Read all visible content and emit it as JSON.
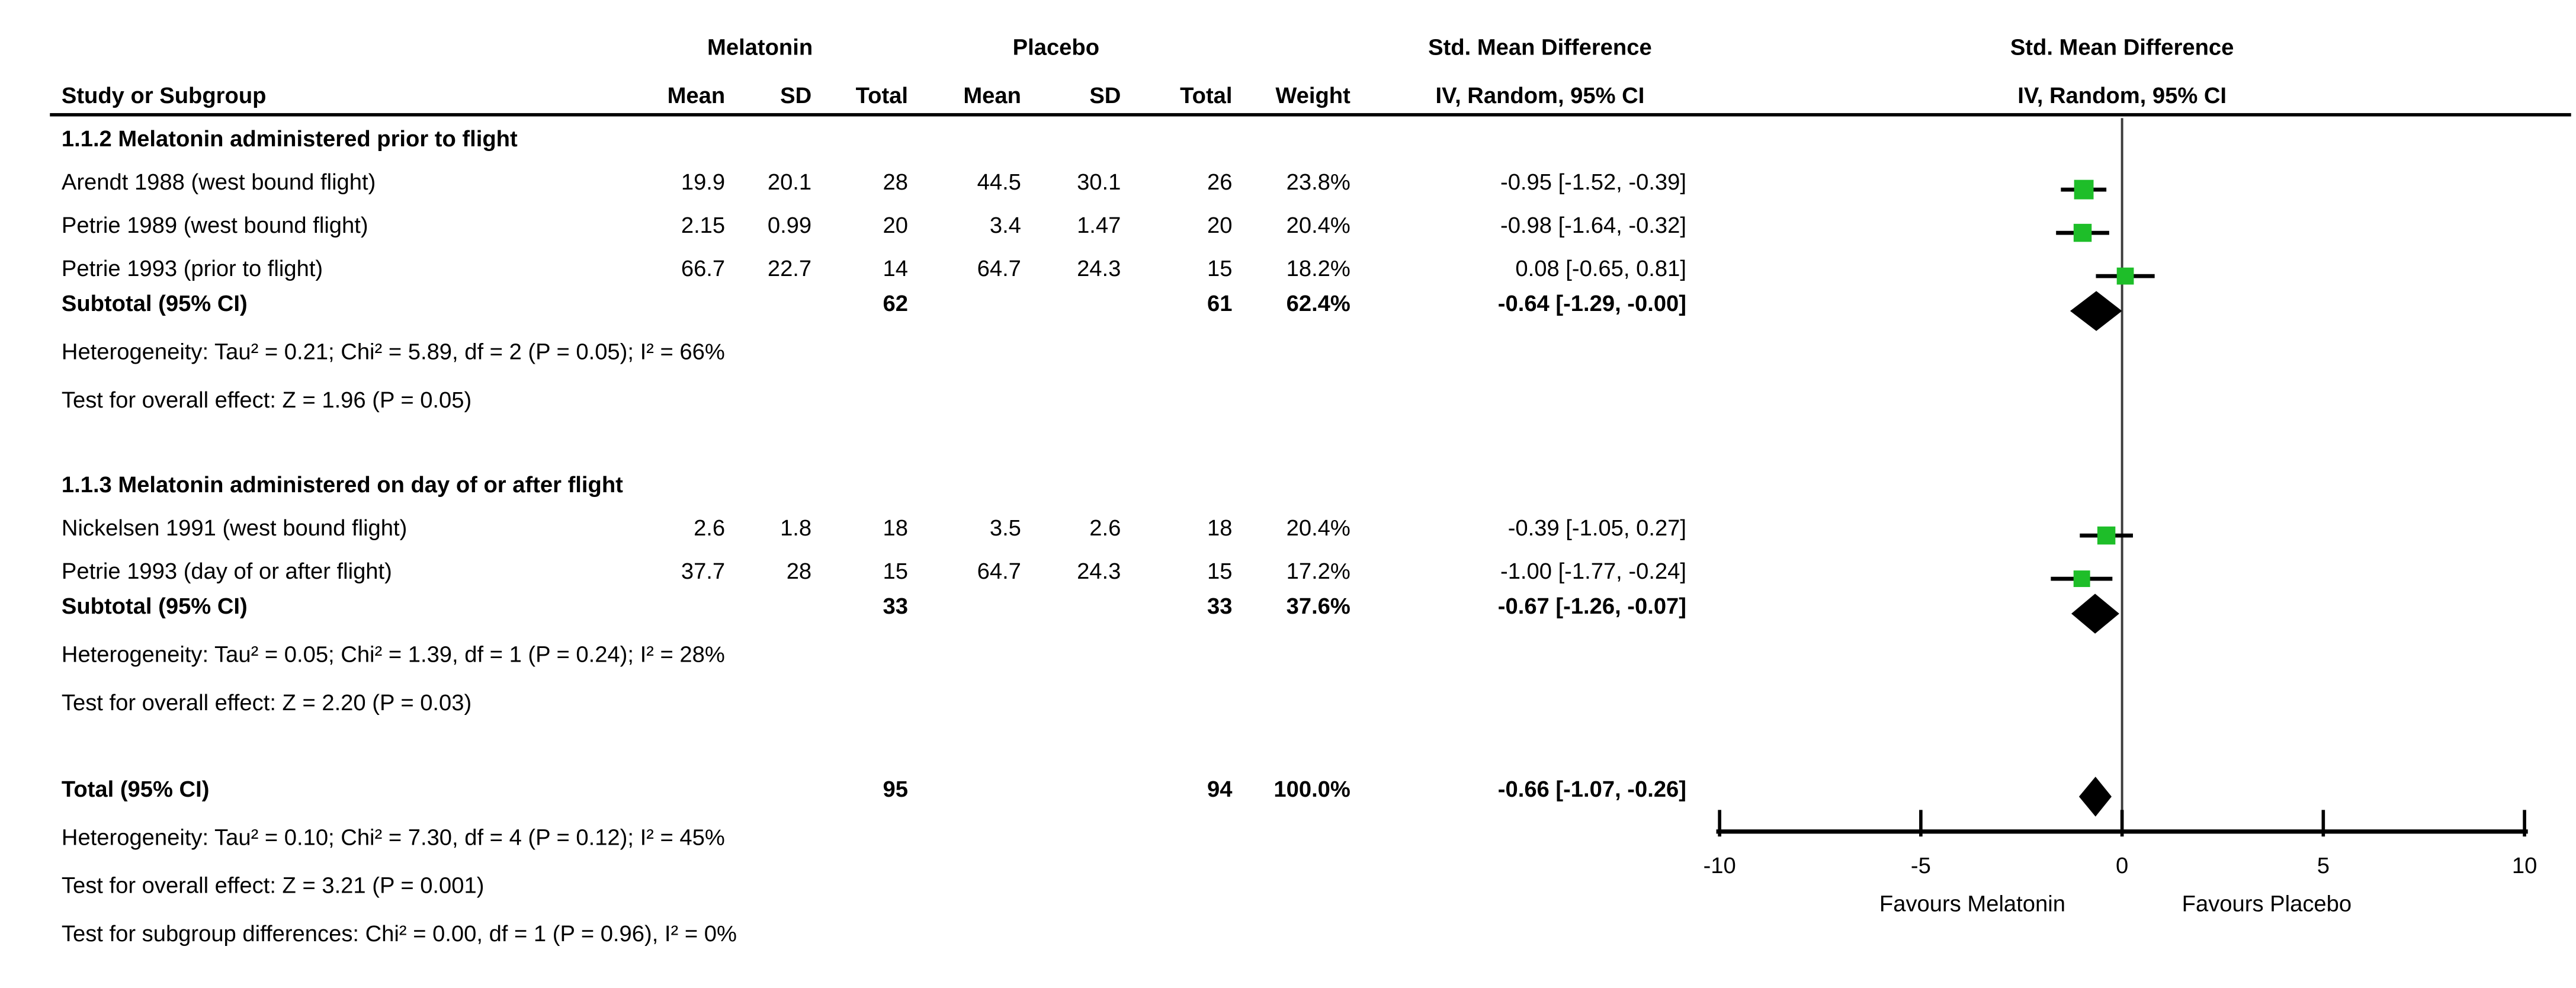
{
  "header": {
    "study_col": "Study or Subgroup",
    "group1": "Melatonin",
    "group2": "Placebo",
    "mean": "Mean",
    "sd": "SD",
    "total": "Total",
    "weight": "Weight",
    "effect_line1": "Std. Mean Difference",
    "effect_line2": "IV, Random, 95% CI",
    "plot_line1": "Std. Mean Difference",
    "plot_line2": "IV, Random, 95% CI"
  },
  "chart_data": {
    "type": "forest",
    "effect_measure": "Std. Mean Difference",
    "model": "IV, Random, 95% CI",
    "marker_color": "#1EBE29",
    "axis": {
      "min": -10,
      "max": 10,
      "ticks": [
        -10,
        -5,
        0,
        5,
        10
      ],
      "tick_labels": [
        "-10",
        "-5",
        "0",
        "5",
        "10"
      ],
      "xlabel_left": "Favours Melatonin",
      "xlabel_right": "Favours Placebo"
    },
    "rows": [
      {
        "kind": "subgroup",
        "label": "1.1.2 Melatonin administered prior to flight"
      },
      {
        "kind": "study",
        "label": "Arendt 1988 (west bound flight)",
        "mmean": "19.9",
        "msd": "20.1",
        "mtotal": "28",
        "pmean": "44.5",
        "psd": "30.1",
        "ptotal": "26",
        "weight": "23.8%",
        "ci": "-0.95 [-1.52, -0.39]",
        "est": -0.95,
        "lo": -1.52,
        "hi": -0.39,
        "w": 23.8
      },
      {
        "kind": "study",
        "label": "Petrie 1989 (west bound flight)",
        "mmean": "2.15",
        "msd": "0.99",
        "mtotal": "20",
        "pmean": "3.4",
        "psd": "1.47",
        "ptotal": "20",
        "weight": "20.4%",
        "ci": "-0.98 [-1.64, -0.32]",
        "est": -0.98,
        "lo": -1.64,
        "hi": -0.32,
        "w": 20.4
      },
      {
        "kind": "study",
        "label": "Petrie 1993 (prior to flight)",
        "mmean": "66.7",
        "msd": "22.7",
        "mtotal": "14",
        "pmean": "64.7",
        "psd": "24.3",
        "ptotal": "15",
        "weight": "18.2%",
        "ci": "0.08 [-0.65, 0.81]",
        "est": 0.08,
        "lo": -0.65,
        "hi": 0.81,
        "w": 18.2
      },
      {
        "kind": "subtotal",
        "label": "Subtotal (95% CI)",
        "mtotal": "62",
        "ptotal": "61",
        "weight": "62.4%",
        "ci": "-0.64 [-1.29, -0.00]",
        "est": -0.64,
        "lo": -1.29,
        "hi": 0.0
      },
      {
        "kind": "note",
        "label": "Heterogeneity: Tau² = 0.21; Chi² = 5.89, df = 2 (P = 0.05); I² = 66%"
      },
      {
        "kind": "note",
        "label": "Test for overall effect: Z = 1.96 (P = 0.05)"
      },
      {
        "kind": "subgroup",
        "label": "1.1.3 Melatonin administered on day of or after flight"
      },
      {
        "kind": "study",
        "label": "Nickelsen 1991 (west bound flight)",
        "mmean": "2.6",
        "msd": "1.8",
        "mtotal": "18",
        "pmean": "3.5",
        "psd": "2.6",
        "ptotal": "18",
        "weight": "20.4%",
        "ci": "-0.39 [-1.05, 0.27]",
        "est": -0.39,
        "lo": -1.05,
        "hi": 0.27,
        "w": 20.4
      },
      {
        "kind": "study",
        "label": "Petrie 1993 (day of or after flight)",
        "mmean": "37.7",
        "msd": "28",
        "mtotal": "15",
        "pmean": "64.7",
        "psd": "24.3",
        "ptotal": "15",
        "weight": "17.2%",
        "ci": "-1.00 [-1.77, -0.24]",
        "est": -1.0,
        "lo": -1.77,
        "hi": -0.24,
        "w": 17.2
      },
      {
        "kind": "subtotal",
        "label": "Subtotal (95% CI)",
        "mtotal": "33",
        "ptotal": "33",
        "weight": "37.6%",
        "ci": "-0.67 [-1.26, -0.07]",
        "est": -0.67,
        "lo": -1.26,
        "hi": -0.07
      },
      {
        "kind": "note",
        "label": "Heterogeneity: Tau² = 0.05; Chi² = 1.39, df = 1 (P = 0.24); I² = 28%"
      },
      {
        "kind": "note",
        "label": "Test for overall effect: Z = 2.20 (P = 0.03)"
      },
      {
        "kind": "total",
        "label": "Total (95% CI)",
        "mtotal": "95",
        "ptotal": "94",
        "weight": "100.0%",
        "ci": "-0.66 [-1.07, -0.26]",
        "est": -0.66,
        "lo": -1.07,
        "hi": -0.26
      },
      {
        "kind": "note",
        "label": "Heterogeneity: Tau² = 0.10; Chi² = 7.30, df = 4 (P = 0.12); I² = 45%"
      },
      {
        "kind": "note",
        "label": "Test for overall effect: Z = 3.21 (P = 0.001)"
      },
      {
        "kind": "note",
        "label": "Test for subgroup differences: Chi² = 0.00, df = 1 (P = 0.96), I² = 0%"
      }
    ]
  }
}
